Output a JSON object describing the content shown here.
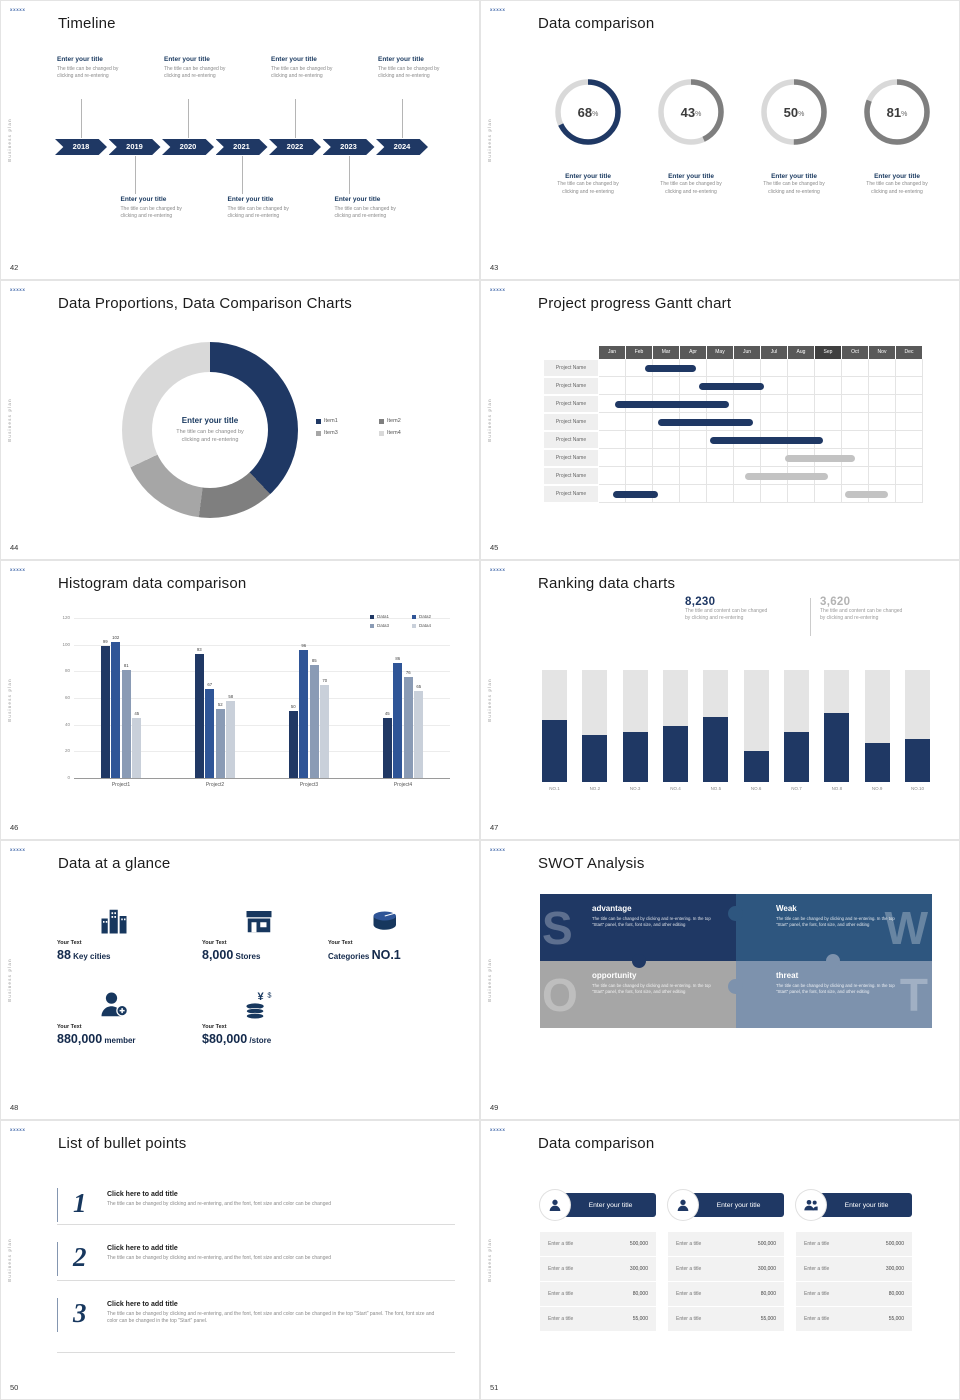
{
  "page": {
    "logo_text": "xxxxx",
    "side_text": "Business plan",
    "accent": "#1f3864"
  },
  "placeholder": {
    "title": "Enter your title",
    "desc_l1": "The title can be changed by",
    "desc_l2": "clicking and re-entering"
  },
  "s42": {
    "number": "42",
    "title": "Timeline",
    "years": [
      "2018",
      "2019",
      "2020",
      "2021",
      "2022",
      "2023",
      "2024"
    ],
    "top_arrow_idx": [
      0,
      2,
      4,
      6
    ],
    "bottom_arrow_idx": [
      1,
      3,
      5
    ]
  },
  "s43": {
    "number": "43",
    "title": "Data comparison",
    "track_color": "#d9d9d9",
    "rings": [
      {
        "pct": 68,
        "color": "#1f3864"
      },
      {
        "pct": 43,
        "color": "#7f7f7f"
      },
      {
        "pct": 50,
        "color": "#7f7f7f"
      },
      {
        "pct": 81,
        "color": "#7f7f7f"
      }
    ]
  },
  "s44": {
    "number": "44",
    "title": "Data Proportions, Data Comparison Charts",
    "chart_data": {
      "type": "pie",
      "segments": [
        {
          "label": "Item1",
          "pct": 38,
          "color": "#1f3864"
        },
        {
          "label": "Item2",
          "pct": 14,
          "color": "#7f7f7f"
        },
        {
          "label": "Item3",
          "pct": 16,
          "color": "#a6a6a6"
        },
        {
          "label": "Item4",
          "pct": 32,
          "color": "#d9d9d9"
        }
      ]
    }
  },
  "s45": {
    "number": "45",
    "title": "Project progress Gantt chart",
    "months": [
      "Jan",
      "Feb",
      "Mar",
      "Apr",
      "May",
      "Jun",
      "Jul",
      "Aug",
      "Sep",
      "Oct",
      "Nov",
      "Dec"
    ],
    "row_label": "Project Name",
    "row_count": 8,
    "bar_colors": {
      "navy": "#1f3864",
      "gray": "#c3c3c3"
    },
    "bars": [
      {
        "row": 0,
        "start": 1.7,
        "len": 1.9,
        "color": "navy"
      },
      {
        "row": 1,
        "start": 3.7,
        "len": 2.4,
        "color": "navy"
      },
      {
        "row": 2,
        "start": 0.6,
        "len": 4.2,
        "color": "navy"
      },
      {
        "row": 3,
        "start": 2.2,
        "len": 3.5,
        "color": "navy"
      },
      {
        "row": 4,
        "start": 4.1,
        "len": 4.2,
        "color": "navy"
      },
      {
        "row": 5,
        "start": 6.9,
        "len": 2.6,
        "color": "gray"
      },
      {
        "row": 6,
        "start": 5.4,
        "len": 3.1,
        "color": "gray"
      },
      {
        "row": 7,
        "start": 0.5,
        "len": 1.7,
        "color": "navy"
      },
      {
        "row": 7,
        "start": 9.1,
        "len": 1.6,
        "color": "gray"
      }
    ]
  },
  "s46": {
    "number": "46",
    "title": "Histogram data comparison",
    "chart_data": {
      "type": "bar",
      "categories": [
        "Project1",
        "Project2",
        "Project3",
        "Project4"
      ],
      "series": [
        {
          "name": "Data1",
          "color": "#203864",
          "values": [
            99,
            93,
            50,
            45
          ]
        },
        {
          "name": "Data2",
          "color": "#2f5597",
          "values": [
            102,
            67,
            96,
            86
          ]
        },
        {
          "name": "Data3",
          "color": "#8a9bb5",
          "values": [
            81,
            52,
            85,
            76
          ]
        },
        {
          "name": "Data4",
          "color": "#c9d0da",
          "values": [
            45,
            58,
            70,
            65
          ]
        }
      ],
      "ylim": [
        0,
        120
      ],
      "y_ticks": [
        0,
        20,
        40,
        60,
        80,
        100,
        120
      ],
      "legend_position": "top-right",
      "grid": true
    }
  },
  "s47": {
    "number": "47",
    "title": "Ranking data charts",
    "stats": [
      {
        "value": "8,230",
        "desc_l1": "The title and content can be changed",
        "desc_l2": "by clicking and re-entering",
        "color": "#1f3864"
      },
      {
        "value": "3,620",
        "desc_l1": "The title and content can be changed",
        "desc_l2": "by clicking and re-entering",
        "color": "#b3b3b3"
      }
    ],
    "chart_data": {
      "type": "bar",
      "categories": [
        "NO.1",
        "NO.2",
        "NO.3",
        "NO.4",
        "NO.5",
        "NO.6",
        "NO.7",
        "NO.8",
        "NO.9",
        "NO.10"
      ],
      "values": [
        55,
        42,
        45,
        50,
        58,
        28,
        45,
        62,
        35,
        38
      ],
      "ylim": [
        0,
        100
      ]
    }
  },
  "s48": {
    "number": "48",
    "title": "Data at a glance",
    "items": [
      {
        "label": "Your Text",
        "icon": "city-icon",
        "pre": "",
        "big": "88",
        "post": " Key cities"
      },
      {
        "label": "Your Text",
        "icon": "store-icon",
        "pre": "",
        "big": "8,000",
        "post": " Stores"
      },
      {
        "label": "Your Text",
        "icon": "categories-icon",
        "pre": "Categories ",
        "big": "NO.1",
        "post": ""
      },
      {
        "label": "Your Text",
        "icon": "member-icon",
        "pre": "",
        "big": "880,000",
        "post": " member"
      },
      {
        "label": "Your Text",
        "icon": "money-icon",
        "pre": "",
        "big": "$80,000",
        "post": " /store"
      }
    ]
  },
  "s49": {
    "number": "49",
    "title": "SWOT Analysis",
    "desc": "The title can be changed by clicking and re-entering. In the top \"Start\" panel, the font, font size, and other editing",
    "blocks": [
      {
        "letter": "S",
        "name": "advantage",
        "color": "#1f3864"
      },
      {
        "letter": "W",
        "name": "Weak",
        "color": "#2e567f"
      },
      {
        "letter": "O",
        "name": "opportunity",
        "color": "#a6a6a6"
      },
      {
        "letter": "T",
        "name": "threat",
        "color": "#7d92ad"
      }
    ]
  },
  "s50": {
    "number": "50",
    "title": "List of bullet points",
    "items": [
      {
        "num": "1",
        "title": "Click here to add title",
        "desc": "The title can be changed by clicking and re-entering, and the font, font size and color can be changed"
      },
      {
        "num": "2",
        "title": "Click here to add title",
        "desc": "The title can be changed by clicking and re-entering, and the font, font size and color can be changed"
      },
      {
        "num": "3",
        "title": "Click here to add title",
        "desc": "The title can be changed by clicking and re-entering, and the font, font size and color can be changed in the top \"Start\" panel. The font, font size and color can be changed in the top \"Start\" panel."
      }
    ]
  },
  "s51": {
    "number": "51",
    "title": "Data comparison",
    "cards": [
      {
        "title": "Enter your title",
        "icon": "person-icon",
        "rows": [
          {
            "label": "Enter a title",
            "value": "500,000"
          },
          {
            "label": "Enter a title",
            "value": "300,000"
          },
          {
            "label": "Enter a title",
            "value": "80,000"
          },
          {
            "label": "Enter a title",
            "value": "55,000"
          }
        ]
      },
      {
        "title": "Enter your title",
        "icon": "person-icon",
        "rows": [
          {
            "label": "Enter a title",
            "value": "500,000"
          },
          {
            "label": "Enter a title",
            "value": "300,000"
          },
          {
            "label": "Enter a title",
            "value": "80,000"
          },
          {
            "label": "Enter a title",
            "value": "55,000"
          }
        ]
      },
      {
        "title": "Enter your title",
        "icon": "people-icon",
        "rows": [
          {
            "label": "Enter a title",
            "value": "500,000"
          },
          {
            "label": "Enter a title",
            "value": "300,000"
          },
          {
            "label": "Enter a title",
            "value": "80,000"
          },
          {
            "label": "Enter a title",
            "value": "55,000"
          }
        ]
      }
    ]
  }
}
